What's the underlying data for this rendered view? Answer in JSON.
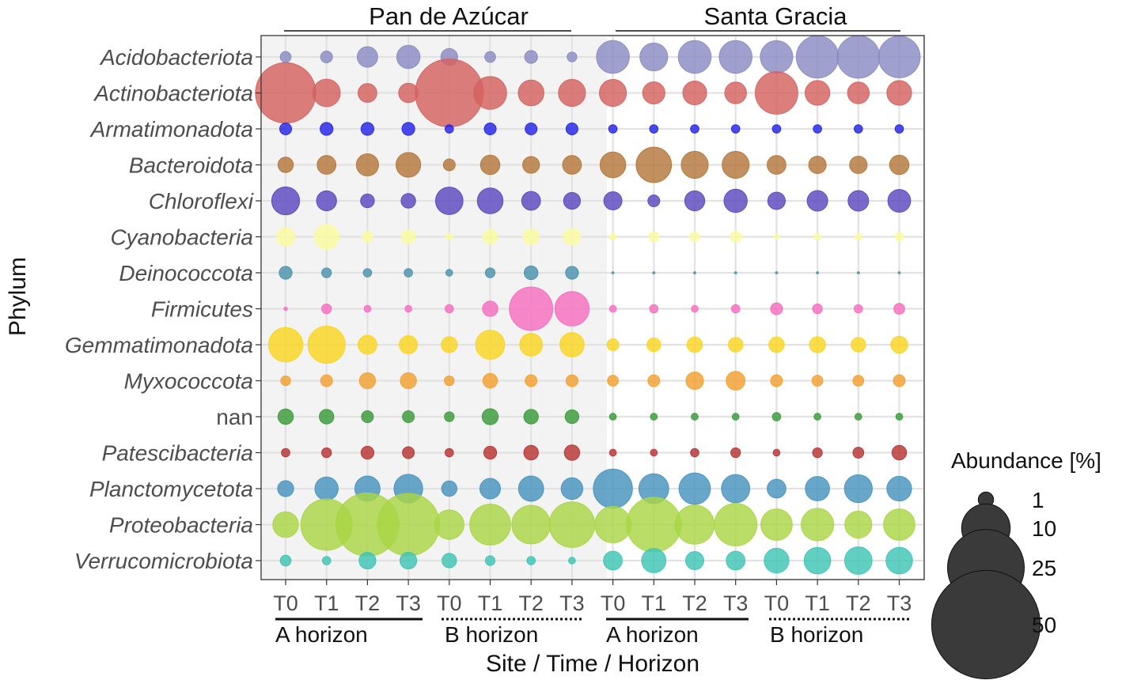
{
  "chart_data": {
    "type": "scatter",
    "xlabel": "Site / Time / Horizon",
    "ylabel": "Phylum",
    "sites": [
      "Pan de Azúcar",
      "Santa Gracia"
    ],
    "horizons": [
      "A horizon",
      "B horizon",
      "A horizon",
      "B horizon"
    ],
    "time_labels": [
      "T0",
      "T1",
      "T2",
      "T3",
      "T0",
      "T1",
      "T2",
      "T3",
      "T0",
      "T1",
      "T2",
      "T3",
      "T0",
      "T1",
      "T2",
      "T3"
    ],
    "phyla": [
      "Acidobacteriota",
      "Actinobacteriota",
      "Armatimonadota",
      "Bacteroidota",
      "Chloroflexi",
      "Cyanobacteria",
      "Deinococcota",
      "Firmicutes",
      "Gemmatimonadota",
      "Myxococcota",
      "nan",
      "Patescibacteria",
      "Planctomycetota",
      "Proteobacteria",
      "Verrucomicrobiota"
    ],
    "colors": [
      "#8b8bc3",
      "#d4625f",
      "#2525e8",
      "#b5763a",
      "#5c48c0",
      "#fbfba0",
      "#4a93ad",
      "#f56fc0",
      "#f9d520",
      "#f3a030",
      "#3a9b3a",
      "#b83434",
      "#4894be",
      "#a9d646",
      "#3fc4b6"
    ],
    "legend": {
      "title": "Abundance [%]",
      "sizes": [
        1,
        10,
        25,
        50
      ]
    },
    "values": [
      [
        0.5,
        0.6,
        1.8,
        2.3,
        1.2,
        0.5,
        0.7,
        0.4,
        4.6,
        3.3,
        4.6,
        4.6,
        4.5,
        7.6,
        7.7,
        7.4
      ],
      [
        15.5,
        3.2,
        1.5,
        1.6,
        19.7,
        4.6,
        2.8,
        3.1,
        3.1,
        2.1,
        2.4,
        2.0,
        7.7,
        2.6,
        2.0,
        2.6
      ],
      [
        0.6,
        0.7,
        0.7,
        0.7,
        0.3,
        0.6,
        0.6,
        0.6,
        0.3,
        0.3,
        0.3,
        0.3,
        0.3,
        0.3,
        0.3,
        0.3
      ],
      [
        1.0,
        1.5,
        2.1,
        2.6,
        0.6,
        1.6,
        1.2,
        1.5,
        2.8,
        5.3,
        3.1,
        3.1,
        1.5,
        1.3,
        1.3,
        1.6
      ],
      [
        3.3,
        1.7,
        0.8,
        0.9,
        3.2,
        2.8,
        1.5,
        1.2,
        1.4,
        0.6,
        1.7,
        2.3,
        1.3,
        1.8,
        1.8,
        2.2
      ],
      [
        1.4,
        2.6,
        0.5,
        0.8,
        0.2,
        0.9,
        1.1,
        1.2,
        0.2,
        0.4,
        0.4,
        0.5,
        0.1,
        0.2,
        0.2,
        0.3
      ],
      [
        0.7,
        0.4,
        0.3,
        0.3,
        0.2,
        0.4,
        0.8,
        0.7,
        0.02,
        0.02,
        0.02,
        0.02,
        0.02,
        0.02,
        0.02,
        0.02
      ],
      [
        0.05,
        0.4,
        0.2,
        0.2,
        0.3,
        1.0,
        8.0,
        5.0,
        0.2,
        0.3,
        0.2,
        0.3,
        0.6,
        0.4,
        0.3,
        0.5
      ],
      [
        5.0,
        5.9,
        1.5,
        1.4,
        1.1,
        3.6,
        2.2,
        2.5,
        0.6,
        0.8,
        1.0,
        0.9,
        1.0,
        1.1,
        0.9,
        1.2
      ],
      [
        0.4,
        0.6,
        1.1,
        1.1,
        0.4,
        0.9,
        0.6,
        0.6,
        0.5,
        0.6,
        1.3,
        1.5,
        0.6,
        0.5,
        0.5,
        0.6
      ],
      [
        1.0,
        0.9,
        0.6,
        0.6,
        0.4,
        1.1,
        0.9,
        0.8,
        0.2,
        0.2,
        0.2,
        0.2,
        0.3,
        0.2,
        0.2,
        0.2
      ],
      [
        0.3,
        0.4,
        0.7,
        0.6,
        0.3,
        0.7,
        0.9,
        1.0,
        0.2,
        0.2,
        0.3,
        0.4,
        0.2,
        0.4,
        0.5,
        0.9
      ],
      [
        1.1,
        2.3,
        2.7,
        3.5,
        1.0,
        1.8,
        2.7,
        2.0,
        6.5,
        3.8,
        4.2,
        3.4,
        1.5,
        2.5,
        3.3,
        2.6
      ],
      [
        2.8,
        11.2,
        17.0,
        16.6,
        3.7,
        7.1,
        6.3,
        8.8,
        5.6,
        12.7,
        6.5,
        7.7,
        4.2,
        4.5,
        3.1,
        4.2
      ],
      [
        0.5,
        0.3,
        1.2,
        1.2,
        0.9,
        0.4,
        0.3,
        0.2,
        1.5,
        2.5,
        1.4,
        1.5,
        2.6,
        3.0,
        3.2,
        3.0
      ]
    ]
  }
}
